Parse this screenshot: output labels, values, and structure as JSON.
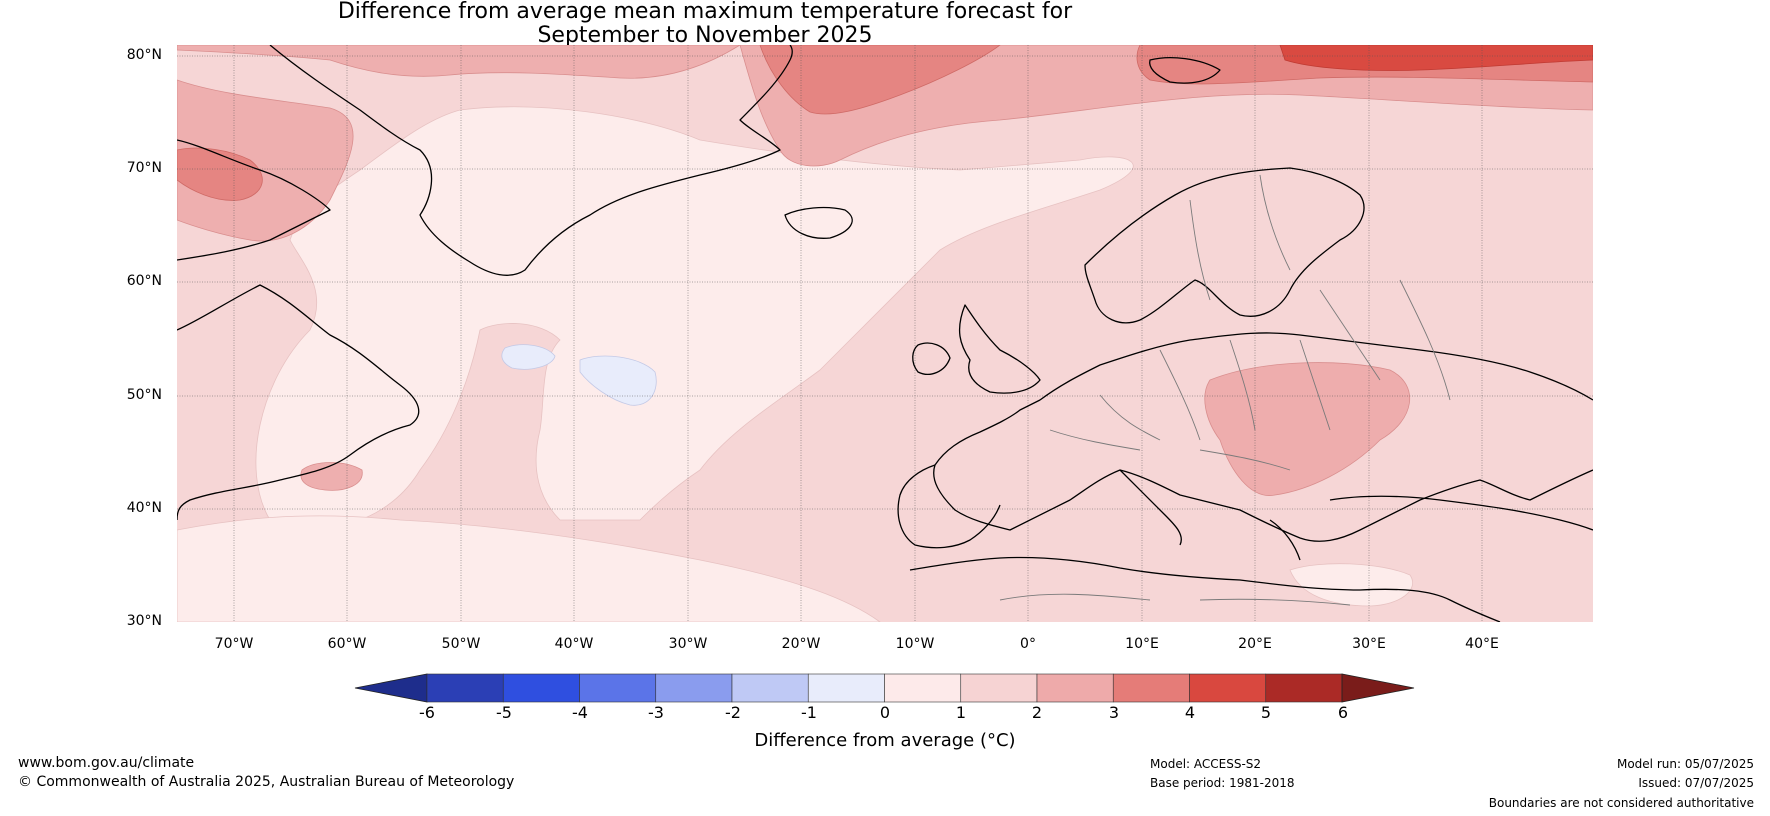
{
  "title": {
    "line1": "Difference from average mean maximum temperature forecast for",
    "line2": "September to November 2025"
  },
  "latitude_labels": [
    "80°N",
    "70°N",
    "60°N",
    "50°N",
    "40°N",
    "30°N"
  ],
  "longitude_labels": [
    "70°W",
    "60°W",
    "50°W",
    "40°W",
    "30°W",
    "20°W",
    "10°W",
    "0°",
    "10°E",
    "20°E",
    "30°E",
    "40°E"
  ],
  "colorbar": {
    "ticks": [
      "-6",
      "-5",
      "-4",
      "-3",
      "-2",
      "-1",
      "0",
      "1",
      "2",
      "3",
      "4",
      "5",
      "6"
    ],
    "label": "Difference from average (°C)",
    "colors": [
      "#1e2d8c",
      "#2b3fb5",
      "#2f4fe0",
      "#5b74e8",
      "#8a9cee",
      "#bfc9f5",
      "#e8ecfb",
      "#fdeaea",
      "#f6d3d3",
      "#eeaaaa",
      "#e57c78",
      "#d9483f",
      "#ab2a26",
      "#7a1c1a"
    ]
  },
  "footer": {
    "website": "www.bom.gov.au/climate",
    "copyright": "© Commonwealth of Australia 2025, Australian Bureau of Meteorology",
    "model": "Model: ACCESS-S2",
    "base_period": "Base period: 1981-2018",
    "model_run": "Model run: 05/07/2025",
    "issued": "Issued: 07/07/2025",
    "disclaimer": "Boundaries are not considered authoritative"
  }
}
